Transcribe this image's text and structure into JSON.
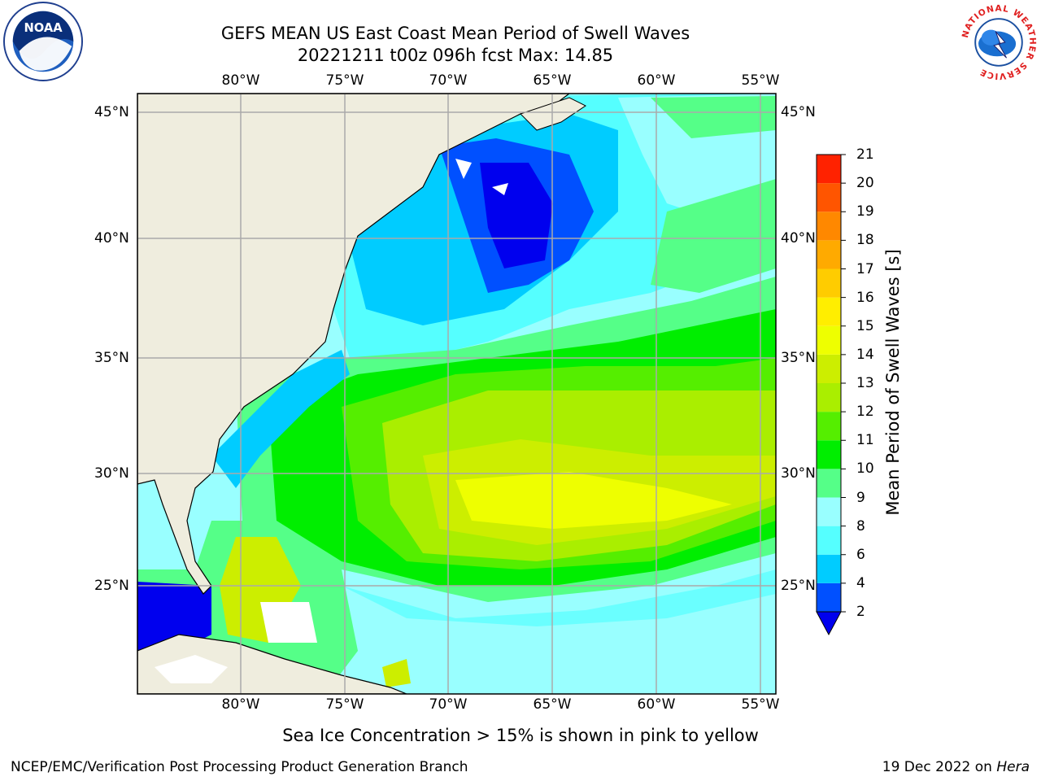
{
  "header": {
    "title_line1": "GEFS MEAN US East Coast Mean Period of Swell Waves",
    "title_line2": "20221211 t00z 096h fcst   Max: 14.85",
    "left_logo": "noaa-logo",
    "right_logo": "nws-logo",
    "nws_ring_text": "NATIONAL WEATHER SERVICE"
  },
  "map": {
    "lon_labels": [
      "80°W",
      "75°W",
      "70°W",
      "65°W",
      "60°W",
      "55°W"
    ],
    "lat_labels": [
      "45°N",
      "40°N",
      "35°N",
      "30°N",
      "25°N"
    ],
    "land_color": "#efedde",
    "grid_color": "#aaaaaa"
  },
  "colorbar": {
    "title": "Mean Period of Swell Waves [s]",
    "labels": [
      "2",
      "4",
      "6",
      "8",
      "9",
      "10",
      "11",
      "12",
      "13",
      "14",
      "15",
      "16",
      "17",
      "18",
      "19",
      "20",
      "21"
    ],
    "colors": [
      "#0050ff",
      "#00ccff",
      "#55ffff",
      "#99ffff",
      "#55ff88",
      "#00ee00",
      "#55ee00",
      "#aaee00",
      "#ccee00",
      "#eeff00",
      "#ffee00",
      "#ffcc00",
      "#ffaa00",
      "#ff8800",
      "#ff5500",
      "#ff2200"
    ],
    "under_color": "#0000ee"
  },
  "footer": {
    "note": "Sea Ice Concentration > 15% is shown in pink to yellow",
    "left": "NCEP/EMC/Verification Post Processing Product Generation Branch",
    "right_date": "19 Dec 2022 on",
    "right_machine": "Hera"
  }
}
